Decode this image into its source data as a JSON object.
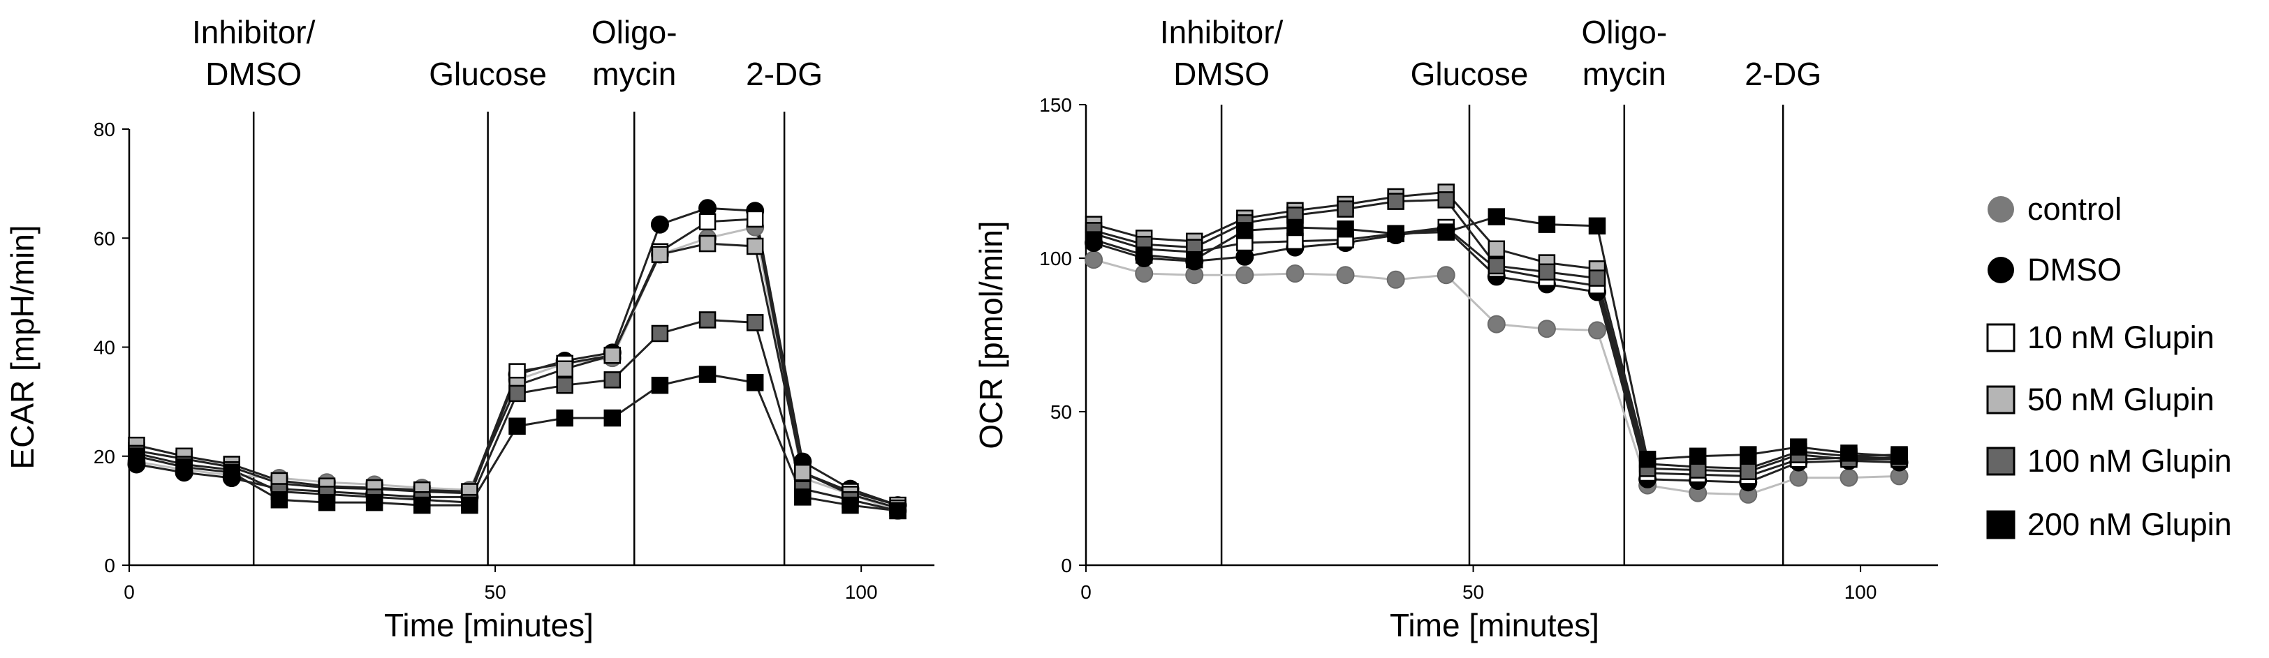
{
  "chart_data": [
    {
      "type": "line",
      "ylabel": "ECAR [mpH/min]",
      "xlabel": "Time [minutes]",
      "xlim": [
        0,
        110
      ],
      "ylim": [
        0,
        80
      ],
      "xticks": [
        0,
        50,
        100
      ],
      "yticks": [
        0,
        20,
        40,
        60,
        80
      ],
      "events": [
        {
          "x": 17,
          "label_lines": [
            "Inhibitor/",
            "DMSO"
          ]
        },
        {
          "x": 49,
          "label_lines": [
            "Glucose"
          ]
        },
        {
          "x": 69,
          "label_lines": [
            "Oligo-",
            "mycin"
          ]
        },
        {
          "x": 89.5,
          "label_lines": [
            "2-DG"
          ]
        }
      ],
      "x": [
        1,
        7.5,
        14,
        20.5,
        27,
        33.5,
        40,
        46.5,
        53,
        59.5,
        66,
        72.5,
        79,
        85.5,
        92,
        98.5,
        105
      ],
      "series": [
        {
          "name": "control",
          "values": [
            19,
            17.5,
            16.5,
            16,
            15.2,
            14.8,
            14.2,
            13.8,
            34,
            37,
            38,
            57,
            60,
            62,
            16,
            13,
            10
          ]
        },
        {
          "name": "DMSO",
          "values": [
            18.5,
            17,
            16,
            14,
            13.5,
            13,
            12.5,
            12.5,
            35,
            37.5,
            39,
            62.5,
            65.5,
            65,
            19,
            14,
            11
          ]
        },
        {
          "name": "10 nM Glupin",
          "values": [
            21,
            19.5,
            18,
            15,
            14.2,
            14,
            13.5,
            13.2,
            35.5,
            37,
            38.5,
            57.5,
            63,
            63.5,
            17,
            13.5,
            11
          ]
        },
        {
          "name": "50 nM Glupin",
          "values": [
            22,
            20,
            18.5,
            15.5,
            14.5,
            14.2,
            13.8,
            13.5,
            33,
            36,
            38.5,
            57,
            59,
            58.5,
            17,
            13,
            10.5
          ]
        },
        {
          "name": "100 nM Glupin",
          "values": [
            20.5,
            18.5,
            17.5,
            13.5,
            13,
            12.5,
            12,
            11.5,
            31.5,
            33,
            34,
            42.5,
            45,
            44.5,
            14,
            12,
            10
          ]
        },
        {
          "name": "200 nM Glupin",
          "values": [
            20,
            18,
            17,
            12,
            11.5,
            11.5,
            11,
            11,
            25.5,
            27,
            27,
            33,
            35,
            33.5,
            12.5,
            11,
            10
          ]
        }
      ]
    },
    {
      "type": "line",
      "ylabel": "OCR [pmol/min]",
      "xlabel": "Time [minutes]",
      "xlim": [
        0,
        110
      ],
      "ylim": [
        0,
        150
      ],
      "xticks": [
        0,
        50,
        100
      ],
      "yticks": [
        0,
        50,
        100,
        150
      ],
      "events": [
        {
          "x": 17.5,
          "label_lines": [
            "Inhibitor/",
            "DMSO"
          ]
        },
        {
          "x": 49.5,
          "label_lines": [
            "Glucose"
          ]
        },
        {
          "x": 69.5,
          "label_lines": [
            "Oligo-",
            "mycin"
          ]
        },
        {
          "x": 90,
          "label_lines": [
            "2-DG"
          ]
        }
      ],
      "x": [
        1,
        7.5,
        14,
        20.5,
        27,
        33.5,
        40,
        46.5,
        53,
        59.5,
        66,
        72.5,
        79,
        85.5,
        92,
        98.5,
        105
      ],
      "series": [
        {
          "name": "control",
          "values": [
            99.5,
            95,
            94.5,
            94.5,
            95,
            94.5,
            93,
            94.5,
            78.5,
            77,
            76.5,
            26,
            23.5,
            23,
            28.5,
            28.5,
            29
          ]
        },
        {
          "name": "DMSO",
          "values": [
            105,
            100,
            99,
            100.5,
            103.5,
            105,
            107.5,
            109.5,
            94,
            91.5,
            89,
            28,
            27.5,
            27,
            33.5,
            34,
            33.5
          ]
        },
        {
          "name": "10 nM Glupin",
          "values": [
            108,
            103,
            102,
            105,
            105.5,
            106,
            108,
            110,
            96.5,
            93.5,
            91,
            30,
            29.5,
            29,
            34.5,
            35,
            35
          ]
        },
        {
          "name": "50 nM Glupin",
          "values": [
            111,
            106.5,
            105.5,
            113,
            115.5,
            117.5,
            120,
            121.5,
            103,
            98.5,
            96.5,
            33,
            32,
            31.5,
            37,
            35.5,
            36
          ]
        },
        {
          "name": "100 nM Glupin",
          "values": [
            109,
            104.5,
            103.5,
            111.5,
            114,
            116,
            118.5,
            119,
            97.5,
            95.5,
            93.5,
            31.5,
            31,
            30.5,
            36,
            34.5,
            34.5
          ]
        },
        {
          "name": "200 nM Glupin",
          "values": [
            106,
            101,
            99.5,
            109,
            110,
            109.5,
            108,
            108.5,
            113.5,
            111,
            110.5,
            34.5,
            35.5,
            36,
            38.5,
            36.5,
            35.5
          ]
        }
      ]
    }
  ],
  "legend": {
    "placement": "right",
    "items": [
      {
        "label": "control",
        "marker": "circle",
        "color": "#7a7a7a",
        "line_color": "#bdbdbd"
      },
      {
        "label": "DMSO",
        "marker": "circle",
        "color": "#000000",
        "line_color": "#222222"
      },
      {
        "label": "10 nM Glupin",
        "marker": "square",
        "color": "#ffffff",
        "line_color": "#222222"
      },
      {
        "label": "50 nM Glupin",
        "marker": "square",
        "color": "#b5b5b5",
        "line_color": "#222222"
      },
      {
        "label": "100 nM Glupin",
        "marker": "square",
        "color": "#666666",
        "line_color": "#222222"
      },
      {
        "label": "200 nM Glupin",
        "marker": "square",
        "color": "#000000",
        "line_color": "#222222"
      }
    ]
  }
}
